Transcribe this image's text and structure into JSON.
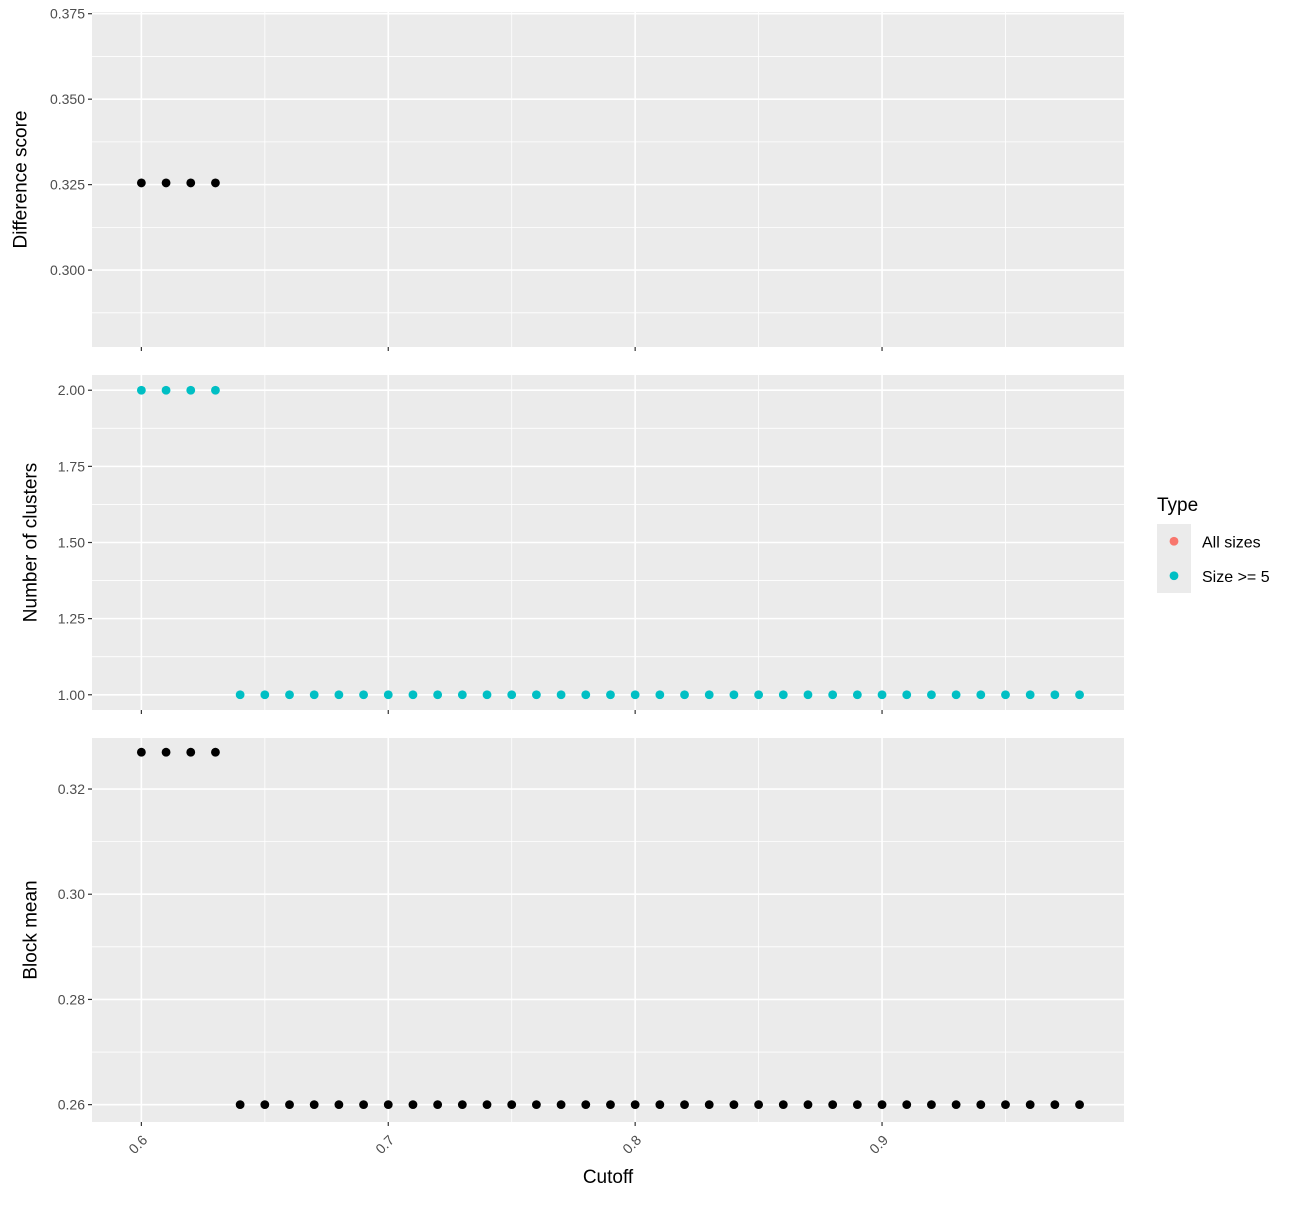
{
  "chart_data": {
    "type": "scatter",
    "xlabel": "Cutoff",
    "x_ticks": [
      0.6,
      0.7,
      0.8,
      0.9
    ],
    "x_tick_labels": [
      "0.6",
      "0.7",
      "0.8",
      "0.9"
    ],
    "xlim": [
      0.58,
      0.998
    ],
    "grid": true,
    "legend": {
      "title": "Type",
      "placement": "right",
      "entries": [
        {
          "label": "All sizes",
          "color": "#F8766D"
        },
        {
          "label": "Size >= 5",
          "color": "#00BFC4"
        }
      ]
    },
    "panels": [
      {
        "ylabel": "Difference score",
        "ylim": [
          0.2775,
          0.3755
        ],
        "y_ticks": [
          0.3,
          0.325,
          0.35,
          0.375
        ],
        "y_tick_labels": [
          "0.300",
          "0.325",
          "0.350",
          "0.375"
        ],
        "series": [
          {
            "color": "#000000",
            "x": [
              0.6,
              0.61,
              0.62,
              0.63
            ],
            "y": [
              0.3255,
              0.3255,
              0.3255,
              0.3255
            ]
          }
        ]
      },
      {
        "ylabel": "Number of clusters",
        "ylim": [
          0.95,
          2.05
        ],
        "y_ticks": [
          1.0,
          1.25,
          1.5,
          1.75,
          2.0
        ],
        "y_tick_labels": [
          "1.00",
          "1.25",
          "1.50",
          "1.75",
          "2.00"
        ],
        "series": [
          {
            "name": "Size >= 5",
            "color": "#00BFC4",
            "x": [
              0.6,
              0.61,
              0.62,
              0.63,
              0.64,
              0.65,
              0.66,
              0.67,
              0.68,
              0.69,
              0.7,
              0.71,
              0.72,
              0.73,
              0.74,
              0.75,
              0.76,
              0.77,
              0.78,
              0.79,
              0.8,
              0.81,
              0.82,
              0.83,
              0.84,
              0.85,
              0.86,
              0.87,
              0.88,
              0.89,
              0.9,
              0.91,
              0.92,
              0.93,
              0.94,
              0.95,
              0.96,
              0.97,
              0.98
            ],
            "y": [
              2,
              2,
              2,
              2,
              1,
              1,
              1,
              1,
              1,
              1,
              1,
              1,
              1,
              1,
              1,
              1,
              1,
              1,
              1,
              1,
              1,
              1,
              1,
              1,
              1,
              1,
              1,
              1,
              1,
              1,
              1,
              1,
              1,
              1,
              1,
              1,
              1,
              1,
              1
            ]
          }
        ]
      },
      {
        "ylabel": "Block mean",
        "ylim": [
          0.2567,
          0.3297
        ],
        "y_ticks": [
          0.26,
          0.28,
          0.3,
          0.32
        ],
        "y_tick_labels": [
          "0.26",
          "0.28",
          "0.30",
          "0.32"
        ],
        "series": [
          {
            "color": "#000000",
            "x": [
              0.6,
              0.61,
              0.62,
              0.63,
              0.64,
              0.65,
              0.66,
              0.67,
              0.68,
              0.69,
              0.7,
              0.71,
              0.72,
              0.73,
              0.74,
              0.75,
              0.76,
              0.77,
              0.78,
              0.79,
              0.8,
              0.81,
              0.82,
              0.83,
              0.84,
              0.85,
              0.86,
              0.87,
              0.88,
              0.89,
              0.9,
              0.91,
              0.92,
              0.93,
              0.94,
              0.95,
              0.96,
              0.97,
              0.98
            ],
            "y": [
              0.327,
              0.327,
              0.327,
              0.327,
              0.26,
              0.26,
              0.26,
              0.26,
              0.26,
              0.26,
              0.26,
              0.26,
              0.26,
              0.26,
              0.26,
              0.26,
              0.26,
              0.26,
              0.26,
              0.26,
              0.26,
              0.26,
              0.26,
              0.26,
              0.26,
              0.26,
              0.26,
              0.26,
              0.26,
              0.26,
              0.26,
              0.26,
              0.26,
              0.26,
              0.26,
              0.26,
              0.26,
              0.26,
              0.26
            ]
          }
        ]
      }
    ]
  }
}
